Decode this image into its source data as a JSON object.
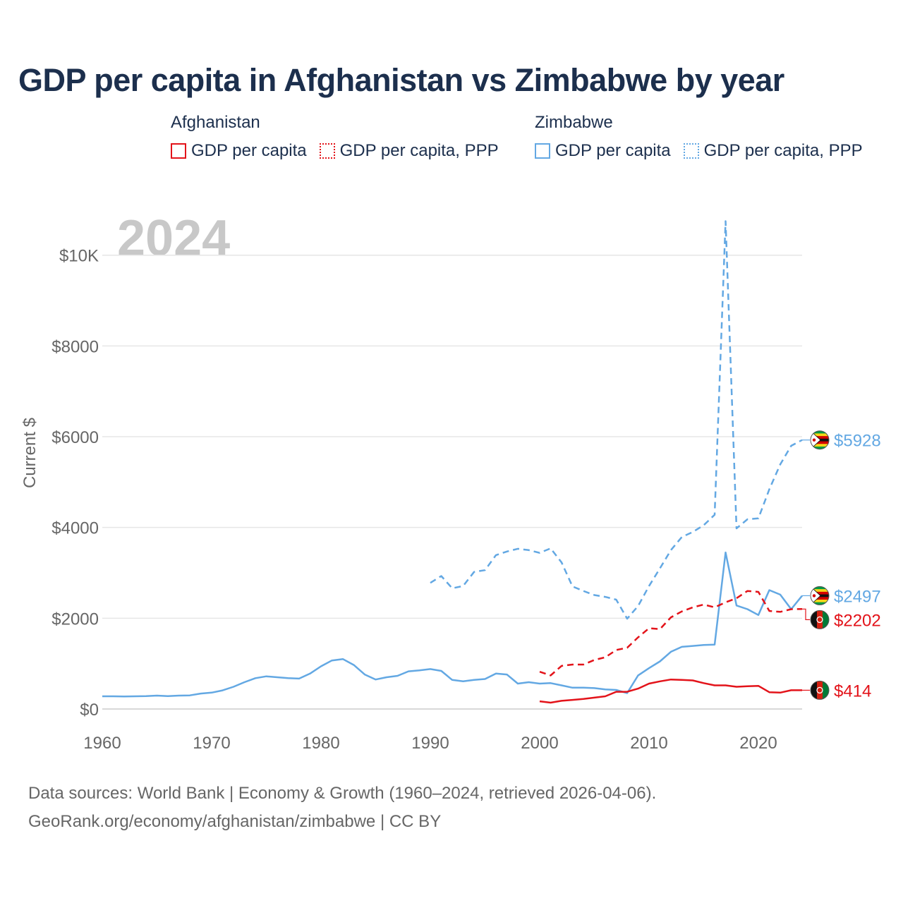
{
  "title": "GDP per capita in Afghanistan vs Zimbabwe by year",
  "legend": {
    "groups": [
      {
        "name": "Afghanistan",
        "color": "#e3131a",
        "items": [
          {
            "label": "GDP per capita",
            "style": "solid"
          },
          {
            "label": "GDP per capita, PPP",
            "style": "dotted"
          }
        ]
      },
      {
        "name": "Zimbabwe",
        "color": "#63a8e3",
        "items": [
          {
            "label": "GDP per capita",
            "style": "solid"
          },
          {
            "label": "GDP per capita, PPP",
            "style": "dotted"
          }
        ]
      }
    ]
  },
  "year_label": "2024",
  "footer": {
    "line1": "Data sources: World Bank | Economy & Growth (1960–2024, retrieved 2026-04-06).",
    "line2": "GeoRank.org/economy/afghanistan/zimbabwe | CC BY"
  },
  "chart_data": {
    "type": "line",
    "title": "GDP per capita in Afghanistan vs Zimbabwe by year",
    "xlabel": "",
    "ylabel": "Current $",
    "xlim": [
      1960,
      2024
    ],
    "ylim": [
      0,
      11000
    ],
    "x_ticks": [
      1960,
      1970,
      1980,
      1990,
      2000,
      2010,
      2020
    ],
    "x_tick_labels": [
      "1960",
      "1970",
      "1980",
      "1990",
      "2000",
      "2010",
      "2020"
    ],
    "y_ticks": [
      0,
      2000,
      4000,
      6000,
      8000,
      10000
    ],
    "y_tick_labels": [
      "$0",
      "$2000",
      "$4000",
      "$6000",
      "$8000",
      "$10K"
    ],
    "grid": true,
    "series": [
      {
        "name": "Zimbabwe GDP per capita, PPP",
        "country": "Zimbabwe",
        "color": "#63a8e3",
        "dash": "dashed",
        "end_label": "$5928",
        "x": [
          1990,
          1991,
          1992,
          1993,
          1994,
          1995,
          1996,
          1997,
          1998,
          1999,
          2000,
          2001,
          2002,
          2003,
          2004,
          2005,
          2006,
          2007,
          2008,
          2009,
          2010,
          2011,
          2012,
          2013,
          2014,
          2015,
          2016,
          2017,
          2018,
          2019,
          2020,
          2021,
          2022,
          2023,
          2024
        ],
        "y": [
          2780,
          2930,
          2660,
          2710,
          3020,
          3060,
          3390,
          3470,
          3530,
          3500,
          3440,
          3540,
          3230,
          2700,
          2600,
          2510,
          2470,
          2410,
          1990,
          2270,
          2710,
          3100,
          3500,
          3790,
          3900,
          4050,
          4280,
          10750,
          3980,
          4180,
          4200,
          4840,
          5390,
          5800,
          5928
        ]
      },
      {
        "name": "Zimbabwe GDP per capita",
        "country": "Zimbabwe",
        "color": "#63a8e3",
        "dash": "solid",
        "end_label": "$2497",
        "x": [
          1960,
          1961,
          1962,
          1963,
          1964,
          1965,
          1966,
          1967,
          1968,
          1969,
          1970,
          1971,
          1972,
          1973,
          1974,
          1975,
          1976,
          1977,
          1978,
          1979,
          1980,
          1981,
          1982,
          1983,
          1984,
          1985,
          1986,
          1987,
          1988,
          1989,
          1990,
          1991,
          1992,
          1993,
          1994,
          1995,
          1996,
          1997,
          1998,
          1999,
          2000,
          2001,
          2002,
          2003,
          2004,
          2005,
          2006,
          2007,
          2008,
          2009,
          2010,
          2011,
          2012,
          2013,
          2014,
          2015,
          2016,
          2017,
          2018,
          2019,
          2020,
          2021,
          2022,
          2023,
          2024
        ],
        "y": [
          280,
          280,
          275,
          280,
          285,
          295,
          285,
          295,
          300,
          340,
          360,
          410,
          490,
          590,
          680,
          720,
          700,
          680,
          670,
          780,
          940,
          1070,
          1100,
          970,
          760,
          650,
          700,
          730,
          830,
          850,
          880,
          840,
          640,
          610,
          640,
          660,
          780,
          760,
          560,
          590,
          560,
          570,
          520,
          470,
          470,
          460,
          430,
          420,
          350,
          740,
          900,
          1050,
          1260,
          1370,
          1390,
          1410,
          1420,
          3450,
          2280,
          2200,
          2070,
          2620,
          2520,
          2200,
          2497
        ]
      },
      {
        "name": "Afghanistan GDP per capita, PPP",
        "country": "Afghanistan",
        "color": "#e3131a",
        "dash": "dashed",
        "end_label": "$2202",
        "x": [
          2000,
          2001,
          2002,
          2003,
          2004,
          2005,
          2006,
          2007,
          2008,
          2009,
          2010,
          2011,
          2012,
          2013,
          2014,
          2015,
          2016,
          2017,
          2018,
          2019,
          2020,
          2021,
          2022,
          2023,
          2024
        ],
        "y": [
          820,
          740,
          950,
          980,
          980,
          1080,
          1140,
          1300,
          1350,
          1580,
          1780,
          1760,
          2020,
          2150,
          2240,
          2300,
          2240,
          2350,
          2440,
          2600,
          2580,
          2160,
          2140,
          2200,
          2202
        ]
      },
      {
        "name": "Afghanistan GDP per capita",
        "country": "Afghanistan",
        "color": "#e3131a",
        "dash": "solid",
        "end_label": "$414",
        "x": [
          2000,
          2001,
          2002,
          2003,
          2004,
          2005,
          2006,
          2007,
          2008,
          2009,
          2010,
          2011,
          2012,
          2013,
          2014,
          2015,
          2016,
          2017,
          2018,
          2019,
          2020,
          2021,
          2022,
          2023,
          2024
        ],
        "y": [
          170,
          140,
          180,
          200,
          220,
          250,
          280,
          380,
          380,
          450,
          560,
          610,
          650,
          640,
          630,
          570,
          520,
          520,
          490,
          500,
          510,
          370,
          360,
          414,
          414
        ]
      }
    ]
  }
}
